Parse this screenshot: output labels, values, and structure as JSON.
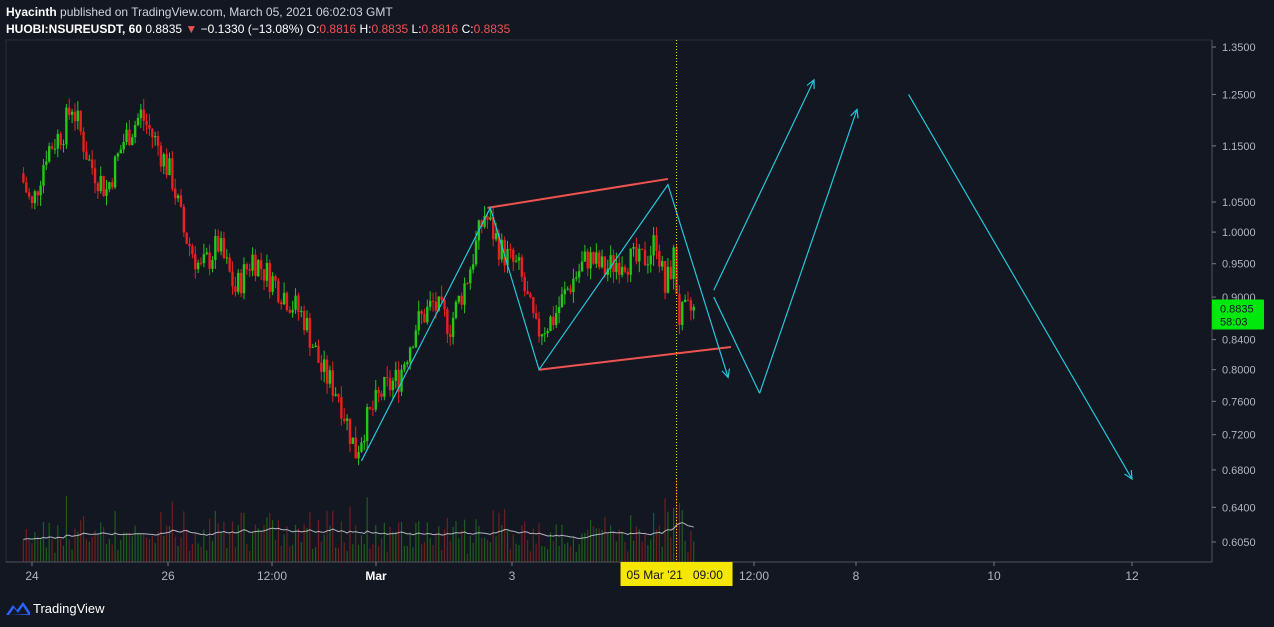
{
  "header": {
    "author": "Hyacinth",
    "published_text": "published on TradingView.com, March 05, 2021 06:02:03 GMT",
    "symbol": "HUOBI:NSUREUSDT, 60",
    "last": "0.8835",
    "arrow": "▼",
    "change": "−0.1330 (−13.08%)",
    "o_label": "O:",
    "o_value": "0.8816",
    "h_label": "H:",
    "h_value": "0.8835",
    "l_label": "L:",
    "l_value": "0.8816",
    "c_label": "C:",
    "c_value": "0.8835"
  },
  "footer": {
    "brand": "TradingView",
    "icon": "tradingview-logo-icon"
  },
  "colors": {
    "background": "#131722",
    "up": "#26c617",
    "down": "#e8201e",
    "pattern": "#ef5350",
    "projection": "#26c6da",
    "price_badge": "#00e80c",
    "time_badge": "#f5e700"
  },
  "chart_data": {
    "type": "candlestick",
    "symbol": "HUOBI:NSUREUSDT",
    "interval": "60",
    "y_axis": {
      "scale": "log",
      "ticks": [
        "1.3500",
        "1.2500",
        "1.1500",
        "1.0500",
        "1.0000",
        "0.9500",
        "0.9000",
        "0.8400",
        "0.8000",
        "0.7600",
        "0.7200",
        "0.6800",
        "0.6400",
        "0.6050"
      ]
    },
    "x_axis": {
      "labels": [
        "24",
        "26",
        "12:00",
        "Mar",
        "3",
        "12:00",
        "8",
        "10",
        "12"
      ],
      "range": [
        "23 Feb 2021 21:00",
        "13 Mar 2021 00:00"
      ]
    },
    "current_price": {
      "label": "0.8835",
      "countdown": "58:03"
    },
    "cursor": {
      "time_label": "05 Mar '21   09:00",
      "time": "05 Mar 2021 09:00"
    },
    "price_path": [
      [
        "23 Feb 2021 21:00",
        1.1
      ],
      [
        "24 Feb 2021 01:00",
        1.04
      ],
      [
        "24 Feb 2021 06:00",
        1.14
      ],
      [
        "24 Feb 2021 12:00",
        1.18
      ],
      [
        "24 Feb 2021 15:00",
        1.23
      ],
      [
        "24 Feb 2021 21:00",
        1.12
      ],
      [
        "25 Feb 2021 03:00",
        1.07
      ],
      [
        "25 Feb 2021 09:00",
        1.16
      ],
      [
        "25 Feb 2021 15:00",
        1.21
      ],
      [
        "25 Feb 2021 21:00",
        1.15
      ],
      [
        "26 Feb 2021 02:00",
        1.09
      ],
      [
        "26 Feb 2021 06:00",
        1.0
      ],
      [
        "26 Feb 2021 12:00",
        0.94
      ],
      [
        "26 Feb 2021 18:00",
        0.98
      ],
      [
        "27 Feb 2021 00:00",
        0.91
      ],
      [
        "27 Feb 2021 06:00",
        0.96
      ],
      [
        "27 Feb 2021 12:00",
        0.93
      ],
      [
        "27 Feb 2021 18:00",
        0.9
      ],
      [
        "28 Feb 2021 00:00",
        0.87
      ],
      [
        "28 Feb 2021 06:00",
        0.8
      ],
      [
        "28 Feb 2021 12:00",
        0.77
      ],
      [
        "28 Feb 2021 18:00",
        0.7
      ],
      [
        "28 Feb 2021 21:00",
        0.73
      ],
      [
        "01 Mar 2021 03:00",
        0.77
      ],
      [
        "01 Mar 2021 09:00",
        0.79
      ],
      [
        "01 Mar 2021 15:00",
        0.86
      ],
      [
        "01 Mar 2021 21:00",
        0.89
      ],
      [
        "02 Mar 2021 03:00",
        0.86
      ],
      [
        "02 Mar 2021 09:00",
        0.93
      ],
      [
        "02 Mar 2021 15:00",
        1.03
      ],
      [
        "02 Mar 2021 21:00",
        0.97
      ],
      [
        "03 Mar 2021 03:00",
        0.94
      ],
      [
        "03 Mar 2021 09:00",
        0.85
      ],
      [
        "03 Mar 2021 15:00",
        0.87
      ],
      [
        "03 Mar 2021 21:00",
        0.92
      ],
      [
        "04 Mar 2021 03:00",
        0.96
      ],
      [
        "04 Mar 2021 09:00",
        0.94
      ],
      [
        "04 Mar 2021 15:00",
        0.96
      ],
      [
        "04 Mar 2021 21:00",
        0.95
      ],
      [
        "05 Mar 2021 01:00",
        0.97
      ],
      [
        "05 Mar 2021 03:00",
        0.99
      ],
      [
        "05 Mar 2021 06:00",
        0.91
      ],
      [
        "05 Mar 2021 09:00",
        0.96
      ],
      [
        "05 Mar 2021 11:00",
        0.87
      ],
      [
        "05 Mar 2021 15:00",
        0.88
      ]
    ],
    "annotations": [
      {
        "type": "polyline",
        "color": "#ef5350",
        "points": [
          [
            "02 Mar 2021 15:00",
            1.04
          ],
          [
            "05 Mar 2021 06:00",
            1.09
          ]
        ]
      },
      {
        "type": "polyline",
        "color": "#ef5350",
        "points": [
          [
            "03 Mar 2021 09:00",
            0.8
          ],
          [
            "06 Mar 2021 04:00",
            0.83
          ]
        ]
      },
      {
        "type": "polyline",
        "color": "#26c6da",
        "points": [
          [
            "28 Feb 2021 19:00",
            0.69
          ],
          [
            "02 Mar 2021 16:00",
            1.04
          ],
          [
            "03 Mar 2021 09:00",
            0.8
          ],
          [
            "05 Mar 2021 06:00",
            1.08
          ],
          [
            "06 Mar 2021 03:00",
            0.79
          ]
        ]
      },
      {
        "type": "arrow",
        "color": "#26c6da",
        "points": [
          [
            "05 Mar 2021 22:00",
            0.91
          ],
          [
            "07 Mar 2021 09:00",
            1.28
          ]
        ]
      },
      {
        "type": "polyline",
        "color": "#26c6da",
        "points": [
          [
            "05 Mar 2021 22:00",
            0.9
          ],
          [
            "06 Mar 2021 14:00",
            0.77
          ]
        ]
      },
      {
        "type": "arrow",
        "color": "#26c6da",
        "points": [
          [
            "06 Mar 2021 14:00",
            0.77
          ],
          [
            "08 Mar 2021 00:00",
            1.22
          ]
        ]
      },
      {
        "type": "arrow",
        "color": "#26c6da",
        "points": [
          [
            "08 Mar 2021 18:00",
            1.25
          ],
          [
            "12 Mar 2021 00:00",
            0.67
          ]
        ]
      }
    ]
  }
}
